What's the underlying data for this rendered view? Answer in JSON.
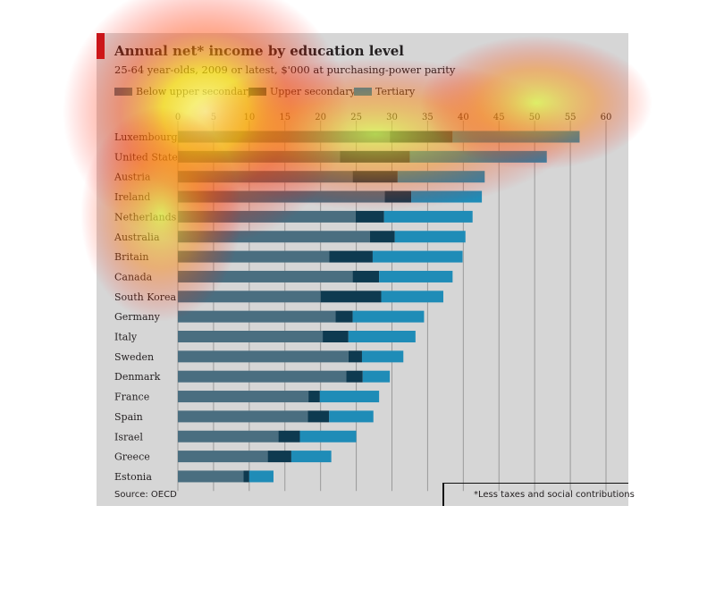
{
  "chart_data": {
    "type": "bar",
    "title": "Annual net* income by education level",
    "subtitle": "25-64 year-olds, 2009 or latest, $'000 at purchasing-power parity",
    "source": "Source: OECD",
    "footnote": "*Less taxes and social contributions",
    "xlim": [
      0,
      60
    ],
    "xticks": [
      0,
      5,
      10,
      15,
      20,
      25,
      30,
      35,
      40,
      45,
      50,
      55,
      60
    ],
    "grid": true,
    "legend_position": "top-left",
    "categories": [
      "Luxembourg",
      "United States",
      "Austria",
      "Ireland",
      "Netherlands",
      "Australia",
      "Britain",
      "Canada",
      "South Korea",
      "Germany",
      "Italy",
      "Sweden",
      "Denmark",
      "France",
      "Spain",
      "Israel",
      "Greece",
      "Estonia"
    ],
    "series": [
      {
        "name": "Below upper secondary",
        "color": "#4a6e80",
        "values": [
          29.7,
          22.7,
          24.5,
          29.0,
          24.9,
          26.9,
          21.2,
          24.5,
          20.0,
          22.1,
          20.3,
          23.9,
          23.6,
          18.3,
          18.2,
          14.1,
          12.6,
          9.2
        ]
      },
      {
        "name": "Upper secondary",
        "color": "#0e3a50",
        "values": [
          38.5,
          32.5,
          30.8,
          32.7,
          28.9,
          30.4,
          27.3,
          28.2,
          28.5,
          24.5,
          23.9,
          25.8,
          25.9,
          19.9,
          21.2,
          17.1,
          15.9,
          10.0
        ]
      },
      {
        "name": "Tertiary",
        "color": "#1f8cb7",
        "values": [
          56.3,
          51.7,
          43.0,
          42.6,
          41.3,
          40.3,
          39.9,
          38.5,
          37.2,
          34.5,
          33.3,
          31.6,
          29.7,
          28.2,
          27.4,
          25.0,
          21.5,
          13.4
        ]
      }
    ]
  }
}
